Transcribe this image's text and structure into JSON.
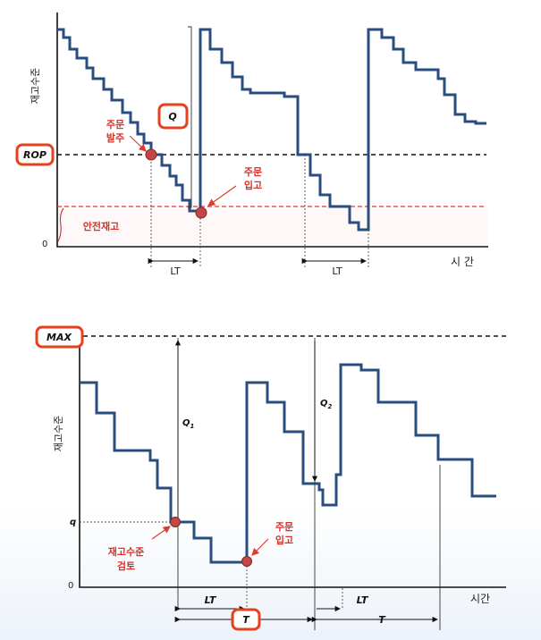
{
  "top": {
    "y_label": "재고수준",
    "zero": "0",
    "x_label": "시 간",
    "lt_label": "LT",
    "order_line1": "주문",
    "order_line2": "발주",
    "receipt_line1": "주문",
    "receipt_line2": "입고",
    "safety_stock": "안전재고",
    "rop_badge": "ROP",
    "q_badge": "Q"
  },
  "bottom": {
    "y_label": "재고수준",
    "zero": "0",
    "q_label": "q",
    "x_label": "시간",
    "q1_main": "Q",
    "q1_sub": "1",
    "q2_main": "Q",
    "q2_sub": "2",
    "lt_label": "LT",
    "t_label": "T",
    "review_line1": "재고수준",
    "review_line2": "검토",
    "receipt_line1": "주문",
    "receipt_line2": "입고",
    "max_badge": "MAX"
  },
  "colors": {
    "inventory_line": "#2a4d7f",
    "annotation_red": "#d8322a",
    "badge_border": "#e8401c",
    "safety_stock_line": "#d23b3b"
  }
}
